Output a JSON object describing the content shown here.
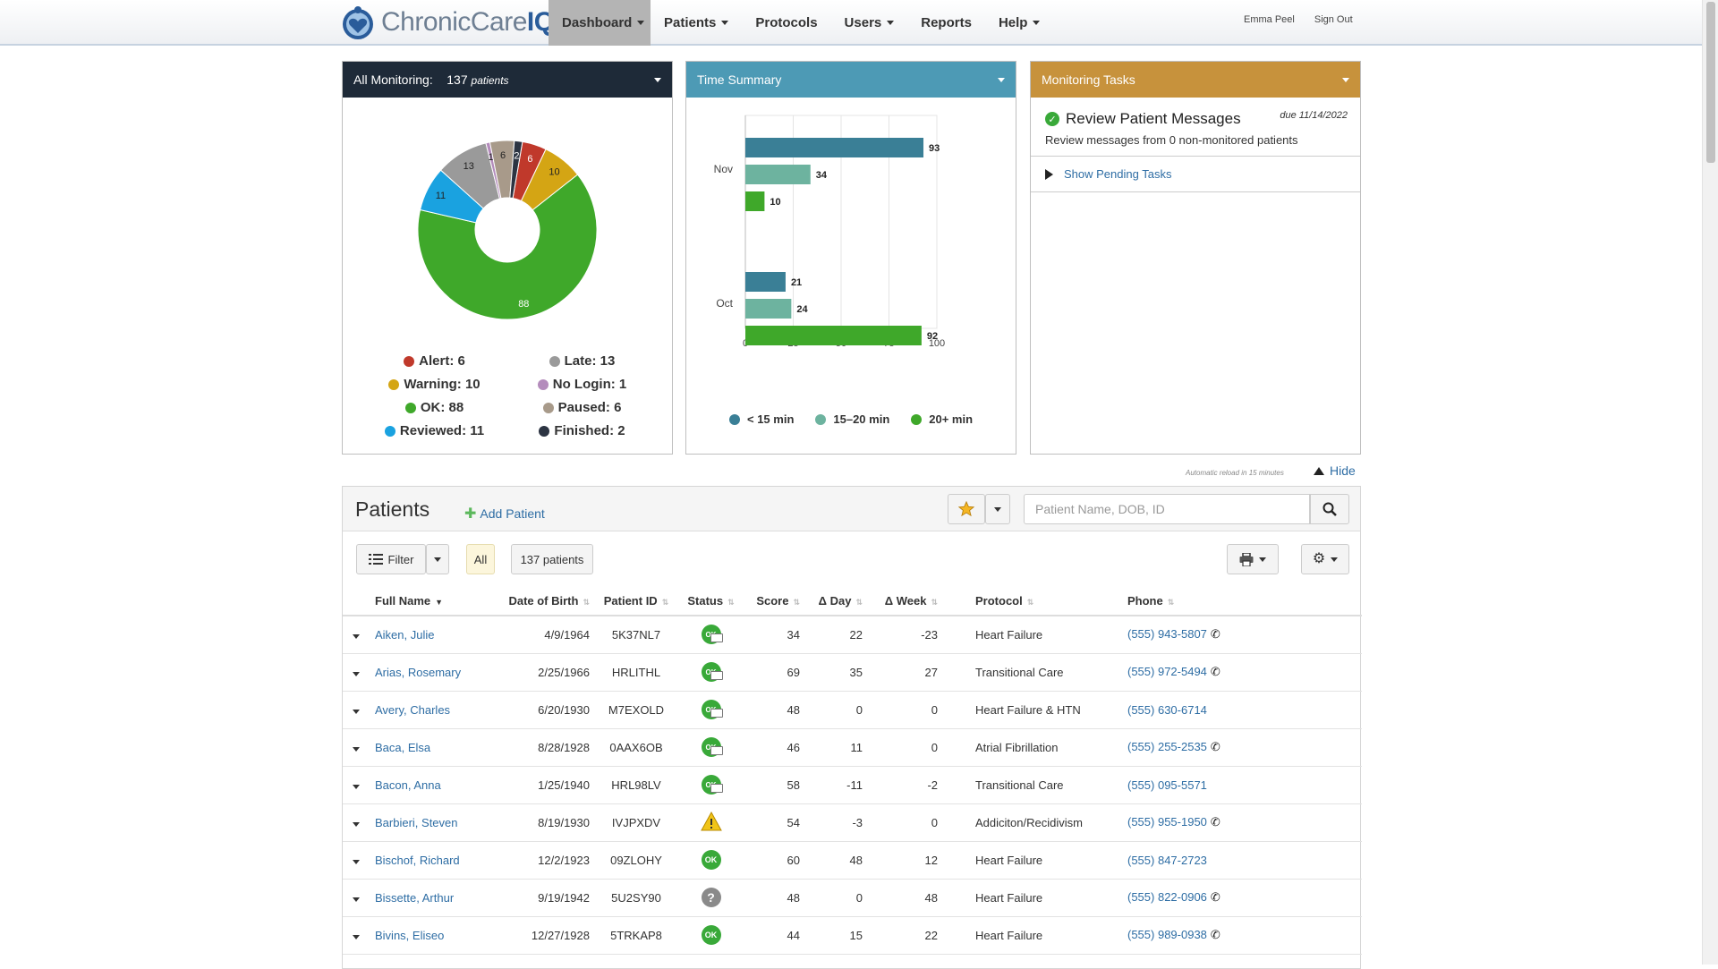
{
  "brand": {
    "name_light": "ChronicCare",
    "name_bold": "IQ"
  },
  "nav": [
    {
      "label": "Dashboard",
      "dropdown": true,
      "active": true
    },
    {
      "label": "Patients",
      "dropdown": true
    },
    {
      "label": "Protocols",
      "dropdown": false
    },
    {
      "label": "Users",
      "dropdown": true
    },
    {
      "label": "Reports",
      "dropdown": false
    },
    {
      "label": "Help",
      "dropdown": true
    }
  ],
  "user": {
    "name": "Emma Peel",
    "sign_out": "Sign Out"
  },
  "monitoring_panel": {
    "title": "All Monitoring:",
    "count": "137",
    "count_unit": "patients"
  },
  "donut": {
    "segments": [
      {
        "label": "Alert",
        "value": 6,
        "color": "#c0392b"
      },
      {
        "label": "Warning",
        "value": 10,
        "color": "#d4a514"
      },
      {
        "label": "OK",
        "value": 88,
        "color": "#3fa82a"
      },
      {
        "label": "Reviewed",
        "value": 11,
        "color": "#1aa2e0"
      },
      {
        "label": "Late",
        "value": 13,
        "color": "#9a9a9a"
      },
      {
        "label": "No Login",
        "value": 1,
        "color": "#b48cbc"
      },
      {
        "label": "Paused",
        "value": 6,
        "color": "#a89a8a"
      },
      {
        "label": "Finished",
        "value": 2,
        "color": "#2c3442"
      }
    ],
    "legend": [
      {
        "text": "Alert: 6",
        "color": "#c0392b"
      },
      {
        "text": "Late: 13",
        "color": "#9a9a9a"
      },
      {
        "text": "Warning: 10",
        "color": "#d4a514"
      },
      {
        "text": "No Login: 1",
        "color": "#b48cbc"
      },
      {
        "text": "OK: 88",
        "color": "#3fa82a"
      },
      {
        "text": "Paused: 6",
        "color": "#a89a8a"
      },
      {
        "text": "Reviewed: 11",
        "color": "#1aa2e0"
      },
      {
        "text": "Finished: 2",
        "color": "#2c3442"
      }
    ]
  },
  "time_panel": {
    "title": "Time Summary"
  },
  "chart_data": {
    "type": "bar",
    "orientation": "horizontal",
    "title": "Time Summary",
    "categories": [
      "Nov",
      "Oct"
    ],
    "series": [
      {
        "name": "< 15 min",
        "values": [
          93,
          21
        ],
        "color": "#3a7f96"
      },
      {
        "name": "15–20 min",
        "values": [
          34,
          24
        ],
        "color": "#6db39f"
      },
      {
        "name": "20+ min",
        "values": [
          10,
          92
        ],
        "color": "#3fa82a"
      }
    ],
    "xlim": [
      0,
      100
    ],
    "xticks": [
      0,
      25,
      50,
      75,
      100
    ],
    "grid": true,
    "legend": "bottom"
  },
  "tasks_panel": {
    "title": "Monitoring Tasks",
    "task_title": "Review Patient Messages",
    "task_due": "due 11/14/2022",
    "task_desc": "Review messages from 0 non-monitored patients",
    "pending": "Show Pending Tasks"
  },
  "reload_note": "Automatic reload in 15 minutes",
  "hide": "Hide",
  "patients": {
    "title": "Patients",
    "add": "Add Patient",
    "search_placeholder": "Patient Name, DOB, ID",
    "filter": "Filter",
    "all": "All",
    "count": "137 patients",
    "columns": [
      "Full Name",
      "Date of Birth",
      "Patient ID",
      "Status",
      "Score",
      "Δ Day",
      "Δ Week",
      "Protocol",
      "Phone"
    ],
    "rows": [
      {
        "name": "Aiken, Julie",
        "dob": "4/9/1964",
        "id": "5K37NL7",
        "status": "ok-msg",
        "score": "34",
        "day": "22",
        "week": "-23",
        "protocol": "Heart Failure",
        "phone": "(555) 943-5807",
        "phone_icon": true
      },
      {
        "name": "Arias, Rosemary",
        "dob": "2/25/1966",
        "id": "HRLITHL",
        "status": "ok-msg",
        "score": "69",
        "day": "35",
        "week": "27",
        "protocol": "Transitional Care",
        "phone": "(555) 972-5494",
        "phone_icon": true
      },
      {
        "name": "Avery, Charles",
        "dob": "6/20/1930",
        "id": "M7EXOLD",
        "status": "ok-msg",
        "score": "48",
        "day": "0",
        "week": "0",
        "protocol": "Heart Failure & HTN",
        "phone": "(555) 630-6714",
        "phone_icon": false
      },
      {
        "name": "Baca, Elsa",
        "dob": "8/28/1928",
        "id": "0AAX6OB",
        "status": "ok-msg",
        "score": "46",
        "day": "11",
        "week": "0",
        "protocol": "Atrial Fibrillation",
        "phone": "(555) 255-2535",
        "phone_icon": true
      },
      {
        "name": "Bacon, Anna",
        "dob": "1/25/1940",
        "id": "HRL98LV",
        "status": "ok-msg",
        "score": "58",
        "day": "-11",
        "week": "-2",
        "protocol": "Transitional Care",
        "phone": "(555) 095-5571",
        "phone_icon": false
      },
      {
        "name": "Barbieri, Steven",
        "dob": "8/19/1930",
        "id": "IVJPXDV",
        "status": "warn",
        "score": "54",
        "day": "-3",
        "week": "0",
        "protocol": "Addiciton/Recidivism",
        "phone": "(555) 955-1950",
        "phone_icon": true
      },
      {
        "name": "Bischof, Richard",
        "dob": "12/2/1923",
        "id": "09ZLOHY",
        "status": "ok",
        "score": "60",
        "day": "48",
        "week": "12",
        "protocol": "Heart Failure",
        "phone": "(555) 847-2723",
        "phone_icon": false
      },
      {
        "name": "Bissette, Arthur",
        "dob": "9/19/1942",
        "id": "5U2SY90",
        "status": "unknown",
        "score": "48",
        "day": "0",
        "week": "48",
        "protocol": "Heart Failure",
        "phone": "(555) 822-0906",
        "phone_icon": true
      },
      {
        "name": "Bivins, Eliseo",
        "dob": "12/27/1928",
        "id": "5TRKAP8",
        "status": "ok",
        "score": "44",
        "day": "15",
        "week": "22",
        "protocol": "Heart Failure",
        "phone": "(555) 989-0938",
        "phone_icon": true
      }
    ]
  },
  "icons": {
    "ok_text": "OK",
    "unknown_text": "?",
    "phone": "✆"
  }
}
